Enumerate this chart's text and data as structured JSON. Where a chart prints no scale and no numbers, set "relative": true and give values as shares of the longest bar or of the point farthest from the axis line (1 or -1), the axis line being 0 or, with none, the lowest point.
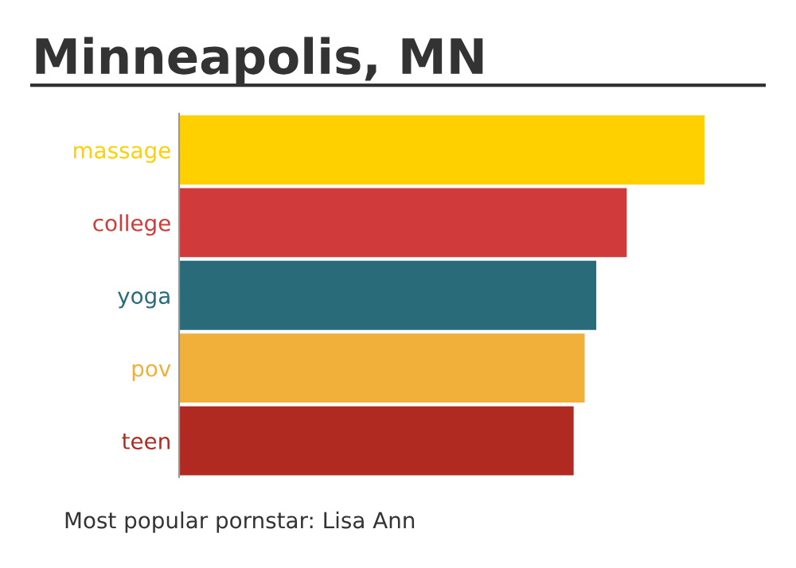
{
  "chart_data": {
    "type": "bar",
    "orientation": "horizontal",
    "relative": true,
    "title": "Minneapolis, MN",
    "categories": [
      "massage",
      "college",
      "yoga",
      "pov",
      "teen"
    ],
    "values": [
      1,
      0.852,
      0.794,
      0.772,
      0.751
    ],
    "colors": [
      "#ffd000",
      "#d13a3a",
      "#2a6b7a",
      "#f0b03a",
      "#b02a22"
    ],
    "annotations": [
      "Most popular pornstar: Lisa Ann"
    ]
  }
}
